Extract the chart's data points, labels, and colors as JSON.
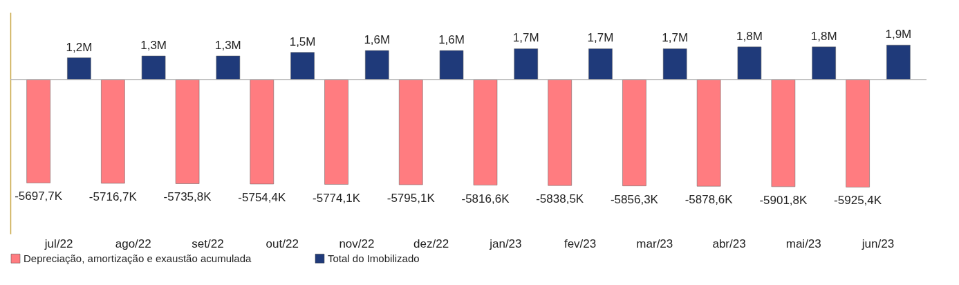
{
  "chart_data": {
    "type": "bar",
    "categories": [
      "jul/22",
      "ago/22",
      "set/22",
      "out/22",
      "nov/22",
      "dez/22",
      "jan/23",
      "fev/23",
      "mar/23",
      "abr/23",
      "mai/23",
      "jun/23"
    ],
    "series": [
      {
        "name": "Depreciação, amortização e exaustão acumulada",
        "color": "#ff7c80",
        "values": [
          -5697.7,
          -5716.7,
          -5735.8,
          -5754.4,
          -5774.1,
          -5795.1,
          -5816.6,
          -5838.5,
          -5856.3,
          -5878.6,
          -5901.8,
          -5925.4
        ],
        "value_labels": [
          "-5697,7K",
          "-5716,7K",
          "-5735,8K",
          "-5754,4K",
          "-5774,1K",
          "-5795,1K",
          "-5816,6K",
          "-5838,5K",
          "-5856,3K",
          "-5878,6K",
          "-5901,8K",
          "-5925,4K"
        ]
      },
      {
        "name": "Total do Imobilizado",
        "color": "#1f3a7a",
        "axis": "y2",
        "values": [
          1.2,
          1.3,
          1.3,
          1.5,
          1.6,
          1.6,
          1.7,
          1.7,
          1.7,
          1.8,
          1.8,
          1.9
        ],
        "value_labels": [
          "1,2M",
          "1,3M",
          "1,3M",
          "1,5M",
          "1,6M",
          "1,6M",
          "1,7M",
          "1,7M",
          "1,7M",
          "1,8M",
          "1,8M",
          "1,9M"
        ]
      }
    ],
    "ylim": [
      -8500,
      3700
    ],
    "y2lim": [
      -8.5,
      3.7
    ],
    "grid": false,
    "legend": "bottom",
    "tick_labels": "x"
  }
}
